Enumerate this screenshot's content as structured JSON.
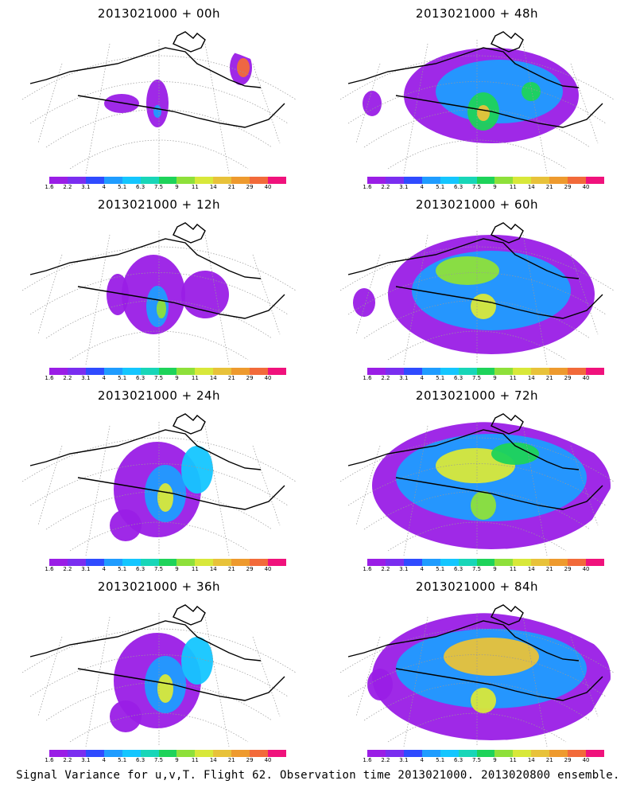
{
  "panels": [
    {
      "title": "2013021000 + 00h",
      "col": 0,
      "row": 0,
      "level": 0
    },
    {
      "title": "2013021000 + 48h",
      "col": 1,
      "row": 0,
      "level": 3
    },
    {
      "title": "2013021000 + 12h",
      "col": 0,
      "row": 1,
      "level": 1
    },
    {
      "title": "2013021000 + 60h",
      "col": 1,
      "row": 1,
      "level": 4
    },
    {
      "title": "2013021000 + 24h",
      "col": 0,
      "row": 2,
      "level": 2
    },
    {
      "title": "2013021000 + 72h",
      "col": 1,
      "row": 2,
      "level": 5
    },
    {
      "title": "2013021000 + 36h",
      "col": 0,
      "row": 3,
      "level": 2
    },
    {
      "title": "2013021000 + 84h",
      "col": 1,
      "row": 3,
      "level": 6
    }
  ],
  "colorbar": {
    "labels": [
      "1.6",
      "2.2",
      "3.1",
      "4",
      "5.1",
      "6.3",
      "7.5",
      "9",
      "11",
      "14",
      "21",
      "29",
      "40"
    ],
    "colors": [
      "#9a1ee6",
      "#7a2ef0",
      "#2f4bff",
      "#1f9cff",
      "#14c6ff",
      "#18d6b8",
      "#1ed35a",
      "#8ee03a",
      "#d8e83a",
      "#e8c23a",
      "#ee9a2e",
      "#f26a3a",
      "#f0127c"
    ]
  },
  "footer": "Signal Variance for u,v,T. Flight 62. Observation time 2013021000. 2013020800 ensemble."
}
